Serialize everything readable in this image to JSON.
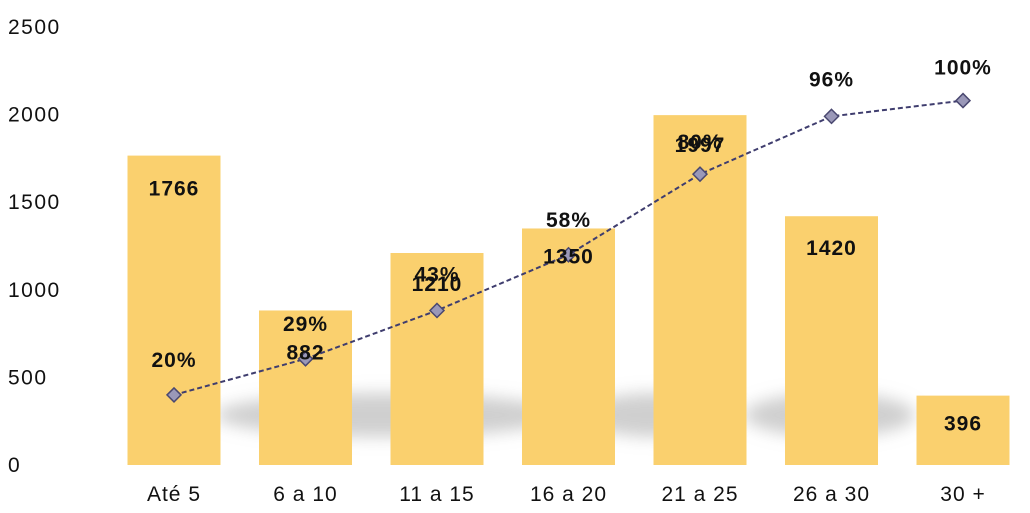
{
  "chart_data": {
    "type": "bar",
    "categories": [
      "Até 5",
      "6 a 10",
      "11 a 15",
      "16 a 20",
      "21 a 25",
      "26 a 30",
      "30 +"
    ],
    "series": [
      {
        "values": [
          1766,
          882,
          1210,
          1350,
          1997,
          1420,
          396
        ],
        "labels": [
          "1766",
          "882",
          "1210",
          "1350",
          "1997",
          "1420",
          "396"
        ],
        "color": "#FAD06E"
      },
      {
        "type": "line",
        "axis_values": [
          400,
          606,
          882,
          1200,
          1660,
          1990,
          2080
        ],
        "labels": [
          "20%",
          "29%",
          "43%",
          "58%",
          "80%",
          "96%",
          "100%"
        ],
        "line_color": "#3F3D6E",
        "marker_color": "#9A98B8"
      }
    ],
    "yticks": [
      "0",
      "500",
      "1000",
      "1500",
      "2000",
      "2500"
    ],
    "ylim": [
      0,
      2500
    ],
    "grid": false,
    "legend": "none"
  }
}
